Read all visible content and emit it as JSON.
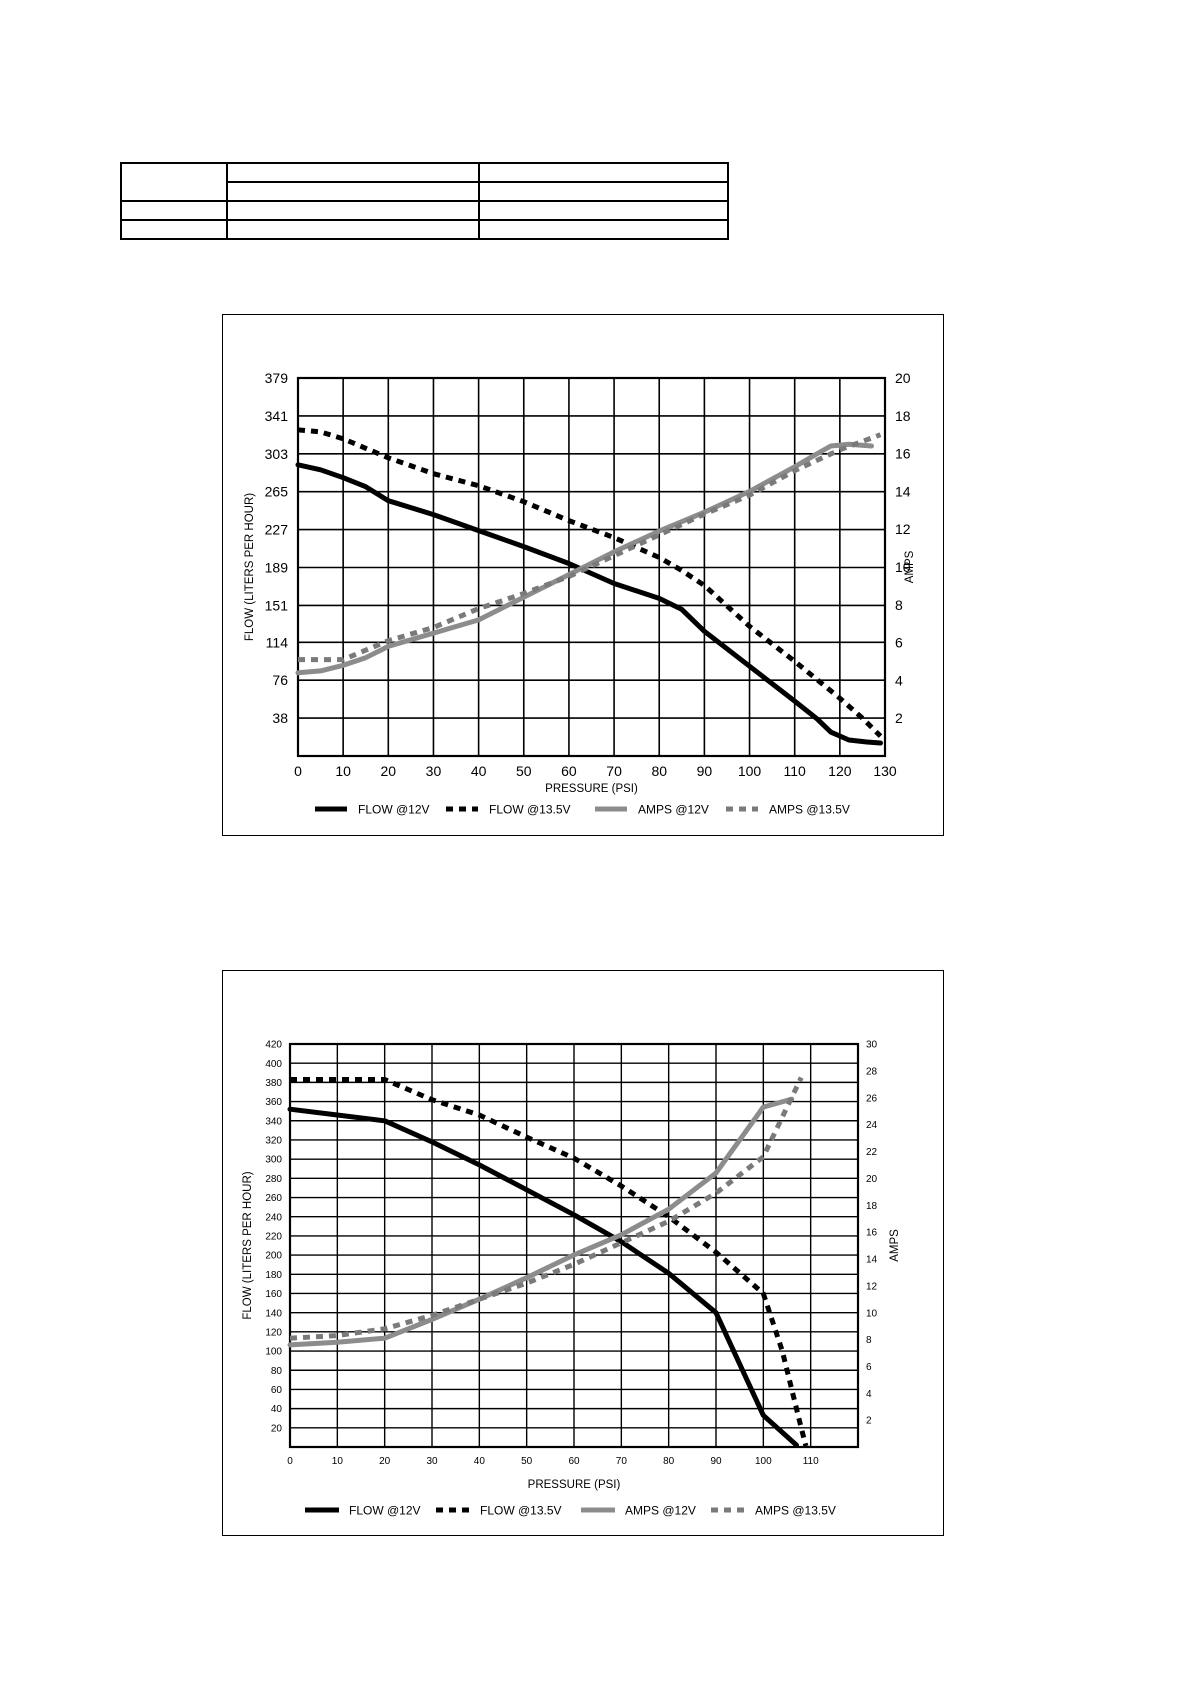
{
  "table": {
    "rows": [
      [
        "",
        "",
        ""
      ],
      [
        "",
        ""
      ],
      [
        "",
        "",
        ""
      ],
      [
        "",
        "",
        ""
      ]
    ]
  },
  "chart_data": [
    {
      "type": "line",
      "title": "",
      "xlabel": "PRESSURE (PSI)",
      "ylabel": "FLOW (LITERS PER HOUR)",
      "y2label": "AMPS",
      "xlim": [
        0,
        130
      ],
      "ylim": [
        0,
        379
      ],
      "y2lim": [
        0,
        20
      ],
      "x_ticks": [
        0,
        10,
        20,
        30,
        40,
        50,
        60,
        70,
        80,
        90,
        100,
        110,
        120,
        130
      ],
      "y_ticks": [
        38,
        76,
        114,
        151,
        189,
        227,
        265,
        303,
        341,
        379
      ],
      "y2_ticks": [
        2,
        4,
        6,
        8,
        10,
        12,
        14,
        16,
        18,
        20
      ],
      "grid": true,
      "legend_position": "bottom",
      "series": [
        {
          "name": "FLOW @12V",
          "axis": "left",
          "color": "#000000",
          "style": "solid",
          "points": [
            [
              0,
              292
            ],
            [
              5,
              287
            ],
            [
              10,
              279
            ],
            [
              15,
              270
            ],
            [
              20,
              256
            ],
            [
              30,
              242
            ],
            [
              40,
              226
            ],
            [
              50,
              210
            ],
            [
              60,
              193
            ],
            [
              70,
              173
            ],
            [
              80,
              158
            ],
            [
              85,
              147
            ],
            [
              90,
              125
            ],
            [
              100,
              90
            ],
            [
              110,
              55
            ],
            [
              115,
              37
            ],
            [
              118,
              24
            ],
            [
              122,
              16
            ],
            [
              126,
              14
            ],
            [
              129,
              13
            ]
          ]
        },
        {
          "name": "FLOW @13.5V",
          "axis": "left",
          "color": "#000000",
          "style": "dotted",
          "points": [
            [
              0,
              327
            ],
            [
              5,
              325
            ],
            [
              10,
              318
            ],
            [
              20,
              299
            ],
            [
              30,
              283
            ],
            [
              40,
              271
            ],
            [
              50,
              255
            ],
            [
              60,
              236
            ],
            [
              70,
              219
            ],
            [
              80,
              199
            ],
            [
              85,
              186
            ],
            [
              90,
              171
            ],
            [
              100,
              130
            ],
            [
              110,
              95
            ],
            [
              120,
              58
            ],
            [
              125,
              38
            ],
            [
              129,
              20
            ]
          ]
        },
        {
          "name": "AMPS @12V",
          "axis": "right",
          "color": "#8c8c8c",
          "style": "solid",
          "points": [
            [
              0,
              4.4
            ],
            [
              5,
              4.5
            ],
            [
              10,
              4.8
            ],
            [
              15,
              5.2
            ],
            [
              20,
              5.8
            ],
            [
              30,
              6.5
            ],
            [
              40,
              7.2
            ],
            [
              50,
              8.4
            ],
            [
              60,
              9.6
            ],
            [
              70,
              10.8
            ],
            [
              80,
              11.9
            ],
            [
              90,
              12.9
            ],
            [
              100,
              14.0
            ],
            [
              110,
              15.3
            ],
            [
              115,
              16.0
            ],
            [
              118,
              16.4
            ],
            [
              122,
              16.5
            ],
            [
              127,
              16.4
            ]
          ]
        },
        {
          "name": "AMPS @13.5V",
          "axis": "right",
          "color": "#7a7a7a",
          "style": "dotted",
          "points": [
            [
              0,
              5.1
            ],
            [
              10,
              5.1
            ],
            [
              20,
              6.1
            ],
            [
              30,
              6.8
            ],
            [
              40,
              7.8
            ],
            [
              50,
              8.6
            ],
            [
              60,
              9.5
            ],
            [
              70,
              10.6
            ],
            [
              80,
              11.7
            ],
            [
              90,
              12.8
            ],
            [
              100,
              13.8
            ],
            [
              110,
              15.1
            ],
            [
              120,
              16.2
            ],
            [
              129,
              17.0
            ]
          ]
        }
      ]
    },
    {
      "type": "line",
      "title": "",
      "xlabel": "PRESSURE (PSI)",
      "ylabel": "FLOW (LITERS PER HOUR)",
      "y2label": "AMPS",
      "xlim": [
        0,
        120
      ],
      "ylim": [
        0,
        420
      ],
      "y2lim": [
        0,
        30
      ],
      "x_ticks": [
        0,
        10,
        20,
        30,
        40,
        50,
        60,
        70,
        80,
        90,
        100,
        110
      ],
      "y_ticks": [
        20,
        40,
        60,
        80,
        100,
        120,
        140,
        160,
        180,
        200,
        220,
        240,
        260,
        280,
        300,
        320,
        340,
        360,
        380,
        400,
        420
      ],
      "y2_ticks": [
        2,
        4,
        6,
        8,
        10,
        12,
        14,
        16,
        18,
        20,
        22,
        24,
        26,
        28,
        30
      ],
      "grid": true,
      "legend_position": "bottom",
      "series": [
        {
          "name": "FLOW @12V",
          "axis": "left",
          "color": "#000000",
          "style": "solid",
          "points": [
            [
              0,
              352
            ],
            [
              10,
              346
            ],
            [
              20,
              340
            ],
            [
              30,
              318
            ],
            [
              40,
              294
            ],
            [
              50,
              268
            ],
            [
              60,
              242
            ],
            [
              70,
              214
            ],
            [
              80,
              181
            ],
            [
              90,
              140
            ],
            [
              100,
              33
            ],
            [
              107,
              2
            ]
          ]
        },
        {
          "name": "FLOW @13.5V",
          "axis": "left",
          "color": "#000000",
          "style": "dotted",
          "points": [
            [
              0,
              383
            ],
            [
              10,
              383
            ],
            [
              20,
              383
            ],
            [
              30,
              362
            ],
            [
              40,
              346
            ],
            [
              50,
              323
            ],
            [
              60,
              301
            ],
            [
              70,
              272
            ],
            [
              80,
              240
            ],
            [
              90,
              203
            ],
            [
              100,
              160
            ],
            [
              104,
              100
            ],
            [
              108,
              20
            ],
            [
              109,
              1
            ]
          ]
        },
        {
          "name": "AMPS @12V",
          "axis": "right",
          "color": "#8c8c8c",
          "style": "solid",
          "points": [
            [
              0,
              7.6
            ],
            [
              10,
              7.8
            ],
            [
              20,
              8.1
            ],
            [
              30,
              9.5
            ],
            [
              40,
              11.0
            ],
            [
              50,
              12.6
            ],
            [
              60,
              14.3
            ],
            [
              70,
              15.8
            ],
            [
              80,
              17.7
            ],
            [
              90,
              20.4
            ],
            [
              100,
              25.3
            ],
            [
              106,
              25.9
            ]
          ]
        },
        {
          "name": "AMPS @13.5V",
          "axis": "right",
          "color": "#7a7a7a",
          "style": "dotted",
          "points": [
            [
              0,
              8.1
            ],
            [
              10,
              8.3
            ],
            [
              20,
              8.8
            ],
            [
              30,
              9.8
            ],
            [
              40,
              11.0
            ],
            [
              50,
              12.2
            ],
            [
              60,
              13.6
            ],
            [
              70,
              15.2
            ],
            [
              80,
              16.8
            ],
            [
              90,
              18.9
            ],
            [
              100,
              21.6
            ],
            [
              108,
              27.5
            ]
          ]
        }
      ]
    }
  ]
}
